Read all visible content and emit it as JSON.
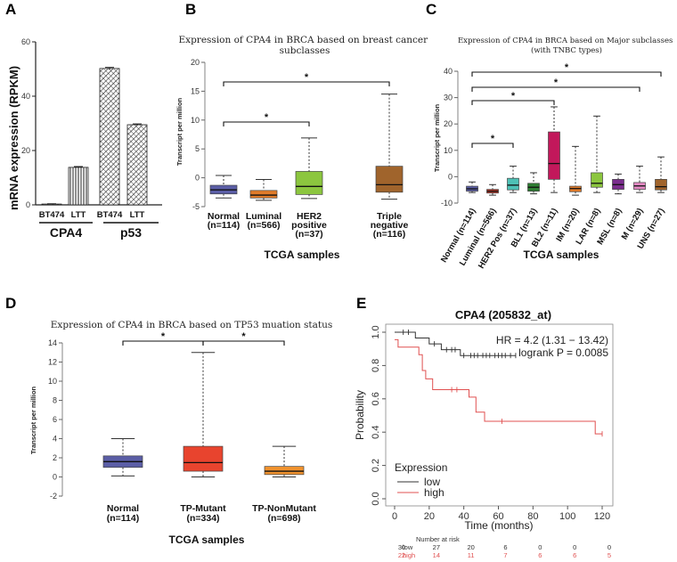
{
  "panel_labels": {
    "a": "A",
    "b": "B",
    "c": "C",
    "d": "D",
    "e": "E"
  },
  "chart_data": [
    {
      "id": "A",
      "type": "bar",
      "ylabel": "mRNA expression (RPKM)",
      "ylim": [
        0,
        60
      ],
      "yticks": [
        0,
        20,
        40,
        60
      ],
      "categories": [
        "BT474",
        "LTT",
        "BT474",
        "LTT"
      ],
      "groups": [
        {
          "name": "CPA4",
          "indices": [
            0,
            1
          ]
        },
        {
          "name": "p53",
          "indices": [
            2,
            3
          ]
        }
      ],
      "values": [
        0.3,
        13.8,
        50.2,
        29.5
      ],
      "errors": [
        0.1,
        0.3,
        0.4,
        0.3
      ]
    },
    {
      "id": "B",
      "type": "box",
      "title": "Expression of CPA4 in BRCA based on breast cancer subclasses",
      "ylabel": "Transcript per million",
      "xlabel": "TCGA samples",
      "ylim": [
        -5,
        20
      ],
      "yticks": [
        -5,
        0,
        5,
        10,
        15,
        20
      ],
      "boxes": [
        {
          "label": "Normal",
          "n": "(n=114)",
          "min": -3.5,
          "q1": -2.8,
          "median": -2.1,
          "q3": -1.3,
          "max": 0.4,
          "color": "#5b5ea6"
        },
        {
          "label": "Luminal",
          "n": "(n=566)",
          "min": -3.9,
          "q1": -3.5,
          "median": -3.0,
          "q3": -2.2,
          "max": -0.3,
          "color": "#e07b2a"
        },
        {
          "label": "HER2 positive",
          "n": "(n=37)",
          "min": -3.6,
          "q1": -2.9,
          "median": -1.5,
          "q3": 1.1,
          "max": 6.9,
          "color": "#8cc63f"
        },
        {
          "label": "Triple negative",
          "n": "(n=116)",
          "min": -3.7,
          "q1": -2.5,
          "median": -1.2,
          "q3": 2.0,
          "max": 14.5,
          "color": "#a0642c"
        }
      ],
      "significance": [
        {
          "from": 0,
          "to": 2,
          "label": "*"
        },
        {
          "from": 0,
          "to": 3,
          "label": "*"
        }
      ]
    },
    {
      "id": "C",
      "type": "box",
      "title": "Expression of CPA4 in BRCA based on Major subclasses (with TNBC types)",
      "ylabel": "Transcript per million",
      "xlabel": "TCGA samples",
      "ylim": [
        -10,
        40
      ],
      "yticks": [
        -10,
        0,
        10,
        20,
        30,
        40
      ],
      "boxes": [
        {
          "label": "Normal (n=114)",
          "min": -6,
          "q1": -5.5,
          "median": -4.6,
          "q3": -3.6,
          "max": -2,
          "color": "#5b5ea6"
        },
        {
          "label": "Luminal (n=566)",
          "min": -7,
          "q1": -6.2,
          "median": -5.5,
          "q3": -4.8,
          "max": -3,
          "color": "#c0392b"
        },
        {
          "label": "HER2 Pos (n=37)",
          "min": -6,
          "q1": -5,
          "median": -3.2,
          "q3": -0.6,
          "max": 4,
          "color": "#4ec1b6"
        },
        {
          "label": "BL1 (n=13)",
          "min": -6.5,
          "q1": -5.5,
          "median": -4,
          "q3": -2.5,
          "max": 1.5,
          "color": "#2e7d32"
        },
        {
          "label": "BL2 (n=11)",
          "min": -6,
          "q1": -1,
          "median": 5,
          "q3": 17,
          "max": 26.5,
          "color": "#c2185b"
        },
        {
          "label": "IM (n=20)",
          "min": -7,
          "q1": -5.7,
          "median": -4.5,
          "q3": -3.6,
          "max": 11.5,
          "color": "#e07b2a"
        },
        {
          "label": "LAR (n=8)",
          "min": -6,
          "q1": -4,
          "median": -2.5,
          "q3": 1.5,
          "max": 23,
          "color": "#8cc63f"
        },
        {
          "label": "MSL (n=8)",
          "min": -6.5,
          "q1": -4.8,
          "median": -3,
          "q3": -1,
          "max": 1,
          "color": "#7b2d8e"
        },
        {
          "label": "M (n=29)",
          "min": -6,
          "q1": -4.8,
          "median": -3.5,
          "q3": -2.2,
          "max": 4,
          "color": "#e589c4"
        },
        {
          "label": "UNS (n=27)",
          "min": -6,
          "q1": -5,
          "median": -3.8,
          "q3": -1,
          "max": 7.5,
          "color": "#a0642c"
        }
      ],
      "significance": [
        {
          "from": 0,
          "to": 2,
          "label": "*"
        },
        {
          "from": 0,
          "to": 4,
          "label": "*"
        },
        {
          "from": 0,
          "to": 8,
          "label": "*"
        },
        {
          "from": 0,
          "to": 9,
          "label": "*"
        }
      ]
    },
    {
      "id": "D",
      "type": "box",
      "title": "Expression of CPA4 in BRCA based on TP53 muation status",
      "ylabel": "Transcript per million",
      "xlabel": "TCGA samples",
      "ylim": [
        -2,
        14
      ],
      "yticks": [
        -2,
        0,
        2,
        4,
        6,
        8,
        10,
        12,
        14
      ],
      "boxes": [
        {
          "label": "Normal",
          "n": "(n=114)",
          "min": 0.1,
          "q1": 1.0,
          "median": 1.6,
          "q3": 2.2,
          "max": 4.0,
          "color": "#5b5ea6"
        },
        {
          "label": "TP-Mutant",
          "n": "(n=334)",
          "min": 0.0,
          "q1": 0.6,
          "median": 1.5,
          "q3": 3.2,
          "max": 13.0,
          "color": "#e8442e"
        },
        {
          "label": "TP-NonMutant",
          "n": "(n=698)",
          "min": 0.0,
          "q1": 0.25,
          "median": 0.6,
          "q3": 1.1,
          "max": 3.2,
          "color": "#f0922e"
        }
      ],
      "significance": [
        {
          "from": 0,
          "to": 1,
          "label": "*"
        },
        {
          "from": 1,
          "to": 2,
          "label": "*"
        }
      ]
    },
    {
      "id": "E",
      "type": "line",
      "title": "CPA4 (205832_at)",
      "xlabel": "Time (months)",
      "ylabel": "Probability",
      "xlim": [
        0,
        125
      ],
      "ylim": [
        0,
        1
      ],
      "xticks": [
        0,
        20,
        40,
        60,
        80,
        100,
        120
      ],
      "yticks": [
        0,
        0.2,
        0.4,
        0.6,
        0.8,
        1.0
      ],
      "stats": {
        "hr": "HR = 4.2 (1.31 − 13.42)",
        "logrank": "logrank P = 0.0085"
      },
      "legend": {
        "title": "Expression",
        "items": [
          "low",
          "high"
        ]
      },
      "series": [
        {
          "name": "low",
          "color": "#333333",
          "steps": [
            [
              0,
              1.0
            ],
            [
              12,
              1.0
            ],
            [
              12,
              0.965
            ],
            [
              20,
              0.965
            ],
            [
              20,
              0.93
            ],
            [
              27,
              0.93
            ],
            [
              27,
              0.895
            ],
            [
              38,
              0.895
            ],
            [
              38,
              0.86
            ],
            [
              70,
              0.86
            ]
          ],
          "censors": [
            [
              5,
              1.0
            ],
            [
              8,
              1.0
            ],
            [
              23,
              0.93
            ],
            [
              30,
              0.895
            ],
            [
              33,
              0.895
            ],
            [
              35,
              0.895
            ],
            [
              40,
              0.86
            ],
            [
              44,
              0.86
            ],
            [
              46,
              0.86
            ],
            [
              48,
              0.86
            ],
            [
              51,
              0.86
            ],
            [
              53,
              0.86
            ],
            [
              55,
              0.86
            ],
            [
              58,
              0.86
            ],
            [
              60,
              0.86
            ],
            [
              62,
              0.86
            ],
            [
              64,
              0.86
            ],
            [
              67,
              0.86
            ],
            [
              70,
              0.86
            ]
          ]
        },
        {
          "name": "high",
          "color": "#e05050",
          "steps": [
            [
              0,
              0.955
            ],
            [
              2,
              0.955
            ],
            [
              2,
              0.91
            ],
            [
              14,
              0.91
            ],
            [
              14,
              0.865
            ],
            [
              16,
              0.865
            ],
            [
              16,
              0.77
            ],
            [
              18,
              0.77
            ],
            [
              18,
              0.72
            ],
            [
              22,
              0.72
            ],
            [
              22,
              0.655
            ],
            [
              43,
              0.655
            ],
            [
              43,
              0.61
            ],
            [
              47,
              0.61
            ],
            [
              47,
              0.52
            ],
            [
              52,
              0.52
            ],
            [
              52,
              0.465
            ],
            [
              116,
              0.465
            ],
            [
              116,
              0.39
            ],
            [
              120,
              0.39
            ]
          ],
          "censors": [
            [
              33,
              0.655
            ],
            [
              36,
              0.655
            ],
            [
              62,
              0.465
            ],
            [
              120,
              0.39
            ]
          ]
        }
      ],
      "risk_table": {
        "header": "Number at risk",
        "rows": [
          {
            "label": "low",
            "values": [
              "30",
              "27",
              "20",
              "6",
              "0",
              "0",
              "0"
            ],
            "color": "#333333"
          },
          {
            "label": "high",
            "values": [
              "22",
              "14",
              "11",
              "7",
              "6",
              "6",
              "5"
            ],
            "color": "#e05050"
          }
        ]
      }
    }
  ]
}
